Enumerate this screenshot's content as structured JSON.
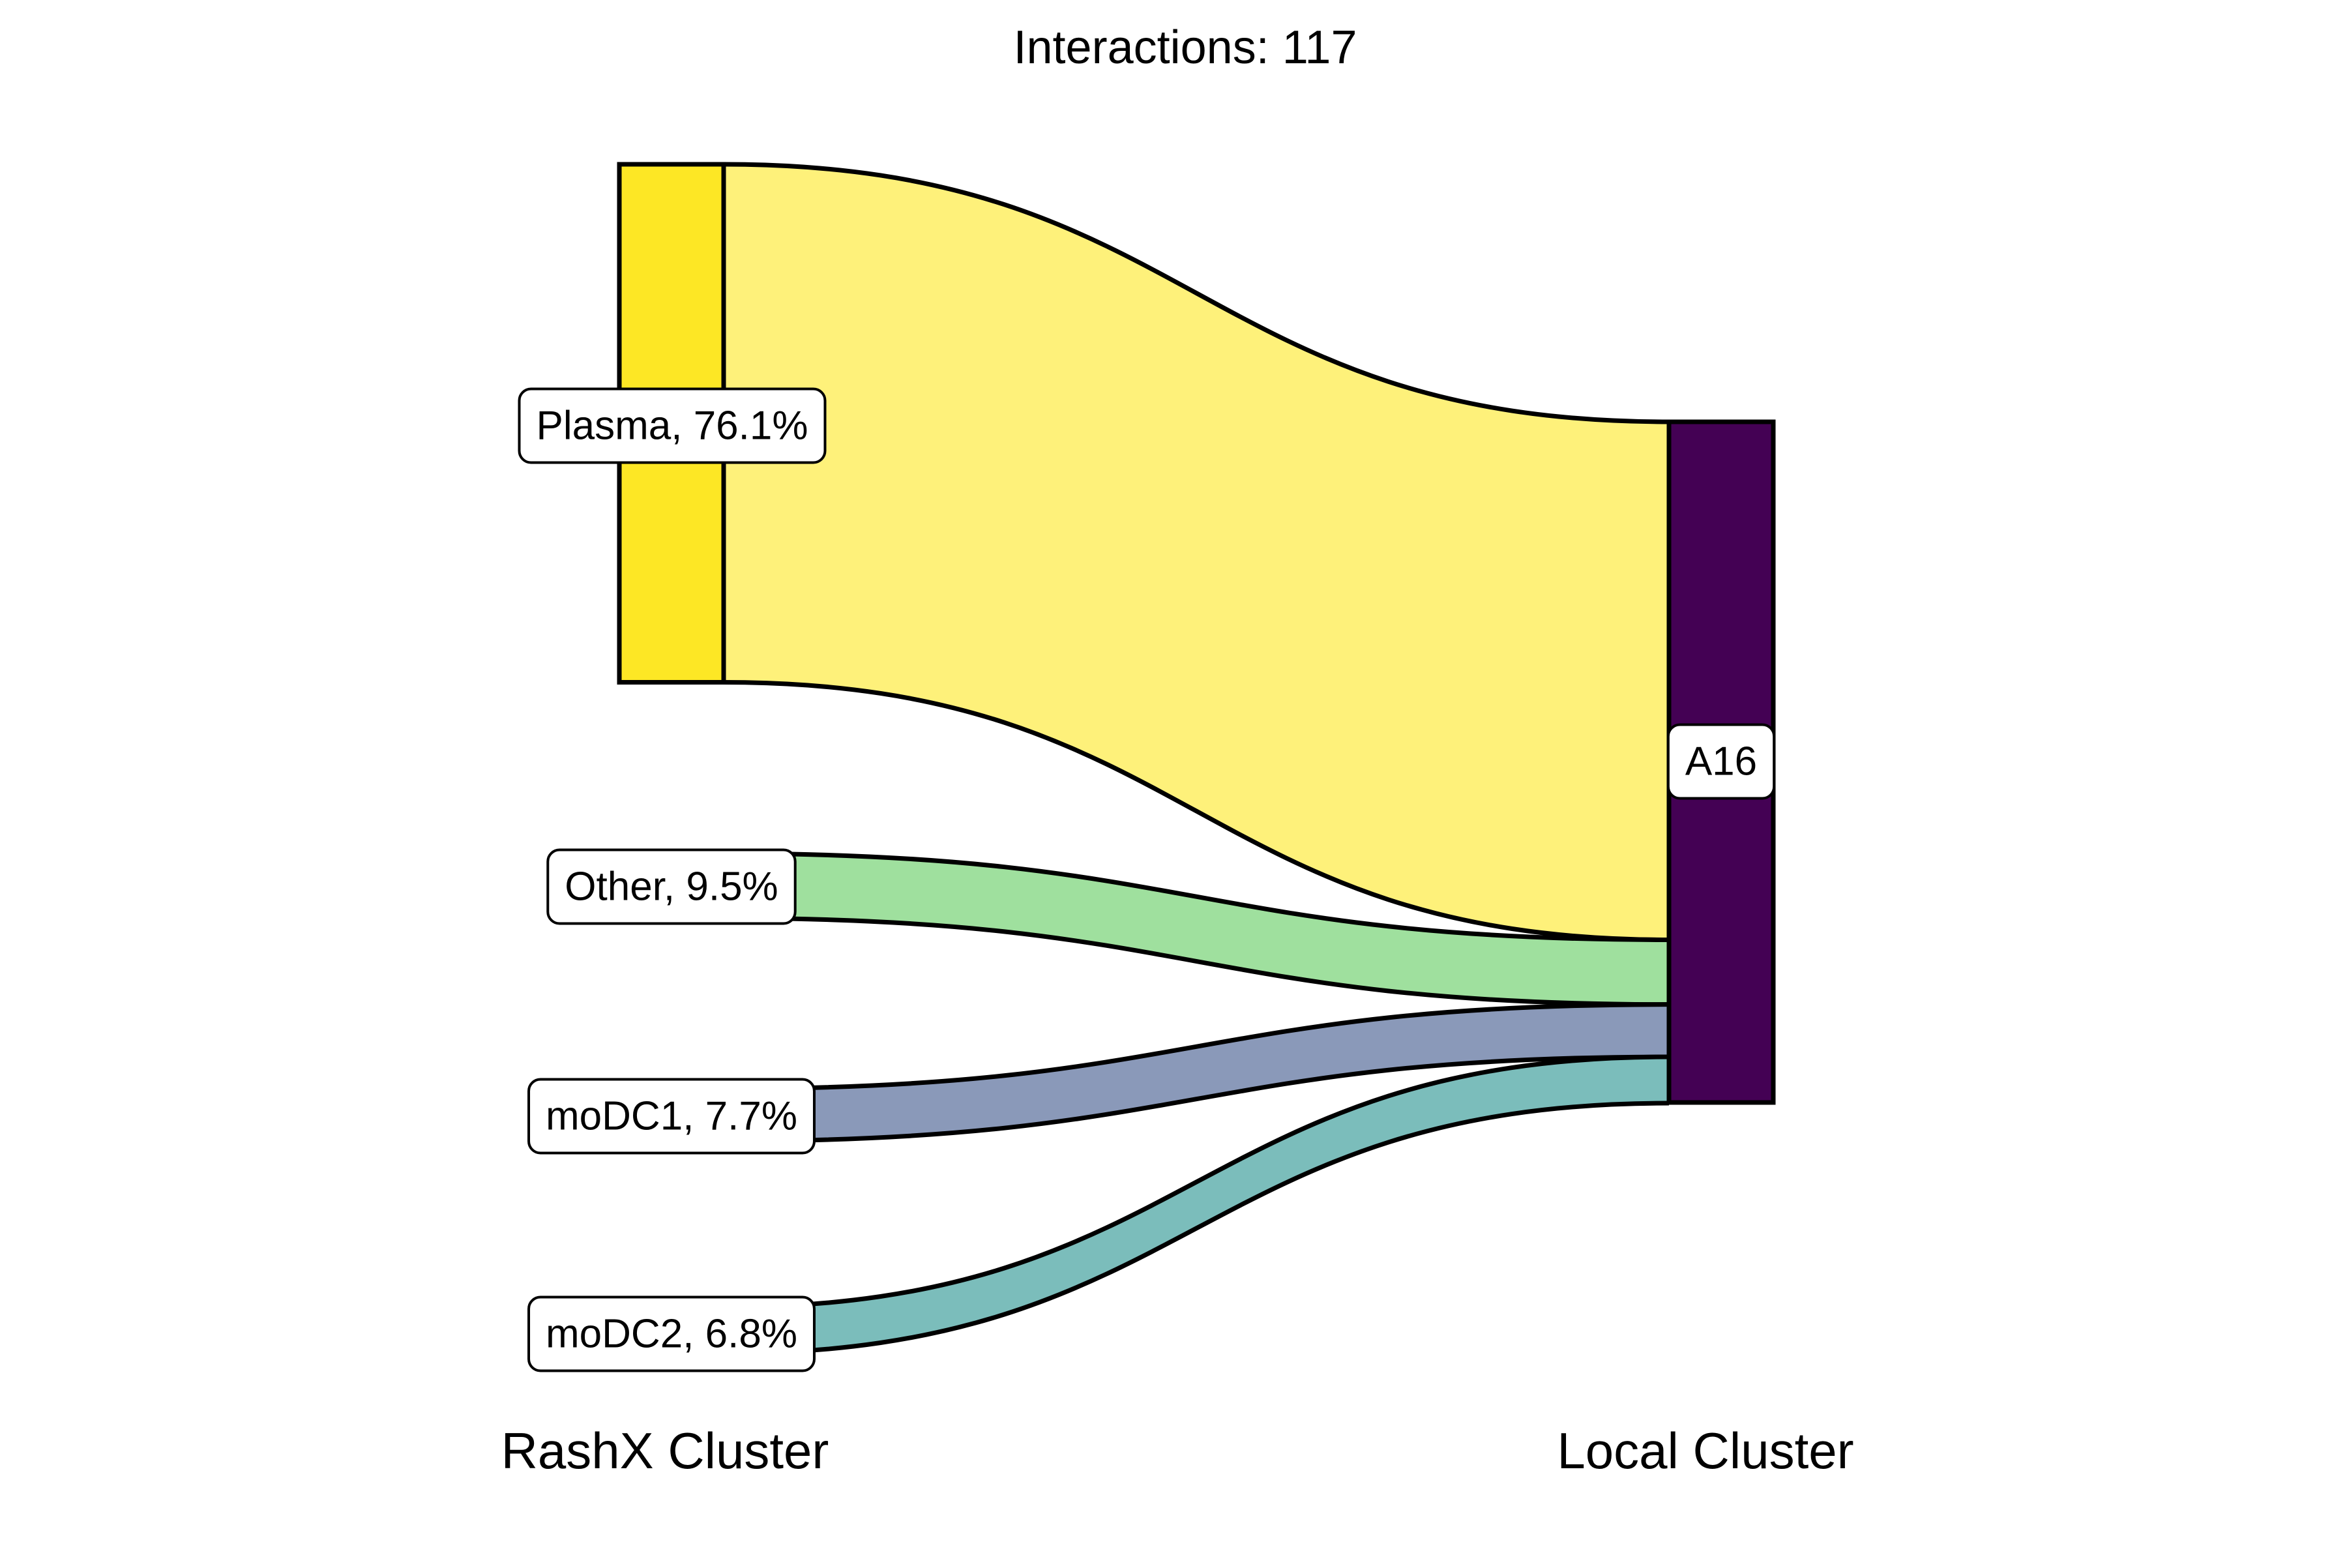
{
  "chart_data": {
    "type": "sankey",
    "title": "Interactions: 117",
    "axis_labels": [
      "RashX Cluster",
      "Local Cluster"
    ],
    "total": 117,
    "sources": [
      {
        "name": "Plasma",
        "label": "Plasma, 76.1%",
        "percent": 76.1,
        "color": "#FDE725",
        "flow_color": "#FEF17A"
      },
      {
        "name": "Other",
        "label": "Other, 9.5%",
        "percent": 9.5,
        "color": "#9FE09E",
        "flow_color": "#9FE09E"
      },
      {
        "name": "moDC1",
        "label": "moDC1, 7.7%",
        "percent": 7.7,
        "color": "#8A99B9",
        "flow_color": "#8A99B9"
      },
      {
        "name": "moDC2",
        "label": "moDC2, 6.8%",
        "percent": 6.8,
        "color": "#7BBDBB",
        "flow_color": "#7BBDBB"
      }
    ],
    "targets": [
      {
        "name": "A16",
        "label": "A16",
        "percent": 100,
        "color": "#440154"
      }
    ],
    "flows": [
      {
        "source": "Plasma",
        "target": "A16",
        "percent": 76.1
      },
      {
        "source": "Other",
        "target": "A16",
        "percent": 9.5
      },
      {
        "source": "moDC1",
        "target": "A16",
        "percent": 7.7
      },
      {
        "source": "moDC2",
        "target": "A16",
        "percent": 6.8
      }
    ]
  }
}
